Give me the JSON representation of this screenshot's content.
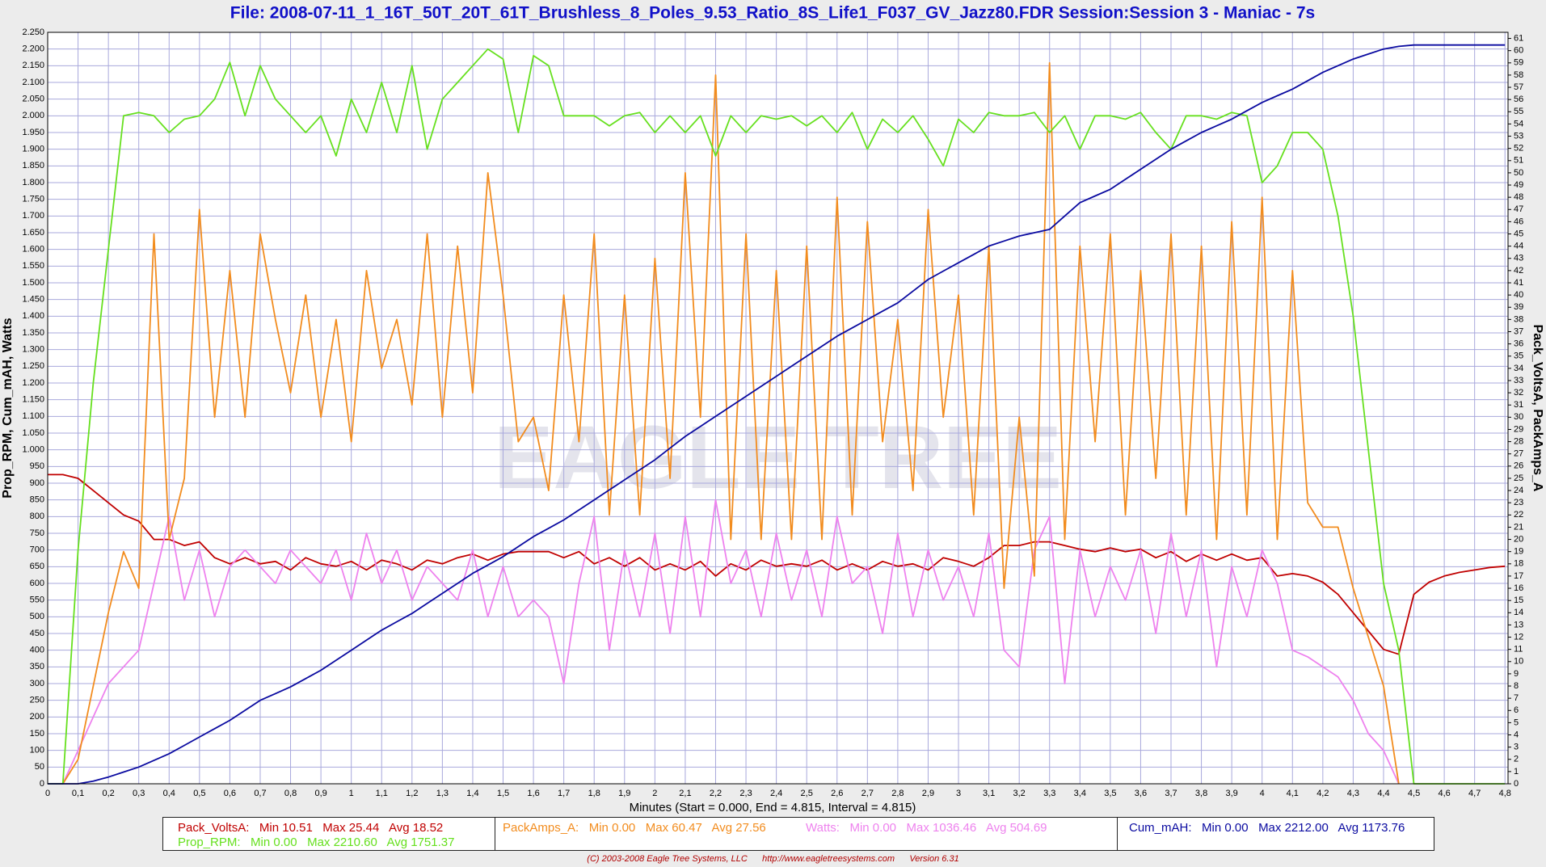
{
  "chart_data": {
    "type": "line",
    "title": "File: 2008-07-11_1_16T_50T_20T_61T_Brushless_8_Poles_9.53_Ratio_8S_Life1_F037_GV_Jazz80.FDR    Session:Session 3 - Maniac - 7s",
    "xlabel": "Minutes (Start = 0.000,  End = 4.815,  Interval =  4.815)",
    "ylabel": "Prop_RPM, Cum_mAH, Watts",
    "y2label": "Pack_VoltsA, PackAmps_A",
    "watermark": "EAGLE TREE",
    "footer": [
      "(C) 2003-2008 Eagle Tree Systems, LLC",
      "http://www.eagletreesystems.com",
      "Version 6.31"
    ],
    "grid": true,
    "xlim": [
      0,
      4.81
    ],
    "ylim": [
      0,
      2250
    ],
    "y2lim": [
      0,
      61.5
    ],
    "x": [
      0,
      0.05,
      0.1,
      0.15,
      0.2,
      0.25,
      0.3,
      0.35,
      0.4,
      0.45,
      0.5,
      0.55,
      0.6,
      0.65,
      0.7,
      0.75,
      0.8,
      0.85,
      0.9,
      0.95,
      1,
      1.05,
      1.1,
      1.15,
      1.2,
      1.25,
      1.3,
      1.35,
      1.4,
      1.45,
      1.5,
      1.55,
      1.6,
      1.65,
      1.7,
      1.75,
      1.8,
      1.85,
      1.9,
      1.95,
      2,
      2.05,
      2.1,
      2.15,
      2.2,
      2.25,
      2.3,
      2.35,
      2.4,
      2.45,
      2.5,
      2.55,
      2.6,
      2.65,
      2.7,
      2.75,
      2.8,
      2.85,
      2.9,
      2.95,
      3,
      3.05,
      3.1,
      3.15,
      3.2,
      3.25,
      3.3,
      3.35,
      3.4,
      3.45,
      3.5,
      3.55,
      3.6,
      3.65,
      3.7,
      3.75,
      3.8,
      3.85,
      3.9,
      3.95,
      4,
      4.05,
      4.1,
      4.15,
      4.2,
      4.25,
      4.3,
      4.35,
      4.4,
      4.45,
      4.5,
      4.55,
      4.6,
      4.65,
      4.7,
      4.75,
      4.8
    ],
    "series": [
      {
        "name": "Pack_VoltsA:",
        "stats": "Min 10.51   Max 25.44   Avg 18.52",
        "color": "#c00000",
        "axis": "y2",
        "values": [
          25.3,
          25.3,
          25,
          24,
          23,
          22,
          21.5,
          20,
          20,
          19.5,
          19.8,
          18.5,
          18,
          18.5,
          18,
          18.2,
          17.5,
          18.5,
          18,
          17.8,
          18.2,
          17.5,
          18.3,
          18,
          17.5,
          18.3,
          18,
          18.5,
          18.8,
          18.3,
          18.8,
          19,
          19,
          19,
          18.5,
          19,
          18,
          18.5,
          17.8,
          18.5,
          17.5,
          18,
          17.5,
          18.2,
          17,
          18,
          17.5,
          18.3,
          17.8,
          18,
          17.8,
          18.3,
          17.5,
          18,
          17.5,
          18.2,
          17.8,
          18,
          17.5,
          18.5,
          18.2,
          17.8,
          18.5,
          19.5,
          19.5,
          19.8,
          19.8,
          19.5,
          19.2,
          19,
          19.3,
          19,
          19.2,
          18.5,
          19,
          18.2,
          18.8,
          18.3,
          18.8,
          18.3,
          18.5,
          17,
          17.2,
          17,
          16.5,
          15.5,
          14,
          12.5,
          11,
          10.6,
          15.5,
          16.5,
          17,
          17.3,
          17.5,
          17.7,
          17.8
        ]
      },
      {
        "name": "Prop_RPM:",
        "stats": "Min 0.00   Max 2210.60   Avg 1751.37",
        "color": "#66e01e",
        "values": [
          0,
          0,
          700,
          1200,
          1600,
          2000,
          2010,
          2000,
          1950,
          1990,
          2000,
          2050,
          2160,
          2000,
          2150,
          2050,
          2000,
          1950,
          2000,
          1880,
          2050,
          1950,
          2100,
          1950,
          2150,
          1900,
          2050,
          2100,
          2150,
          2200,
          2170,
          1950,
          2180,
          2150,
          2000,
          2000,
          2000,
          1970,
          2000,
          2010,
          1950,
          2000,
          1950,
          2000,
          1880,
          2000,
          1950,
          2000,
          1990,
          2000,
          1970,
          2000,
          1950,
          2010,
          1900,
          1990,
          1950,
          2000,
          1930,
          1850,
          1990,
          1950,
          2010,
          2000,
          2000,
          2010,
          1950,
          2000,
          1900,
          2000,
          2000,
          1990,
          2010,
          1950,
          1900,
          2000,
          2000,
          1990,
          2010,
          2000,
          1800,
          1850,
          1950,
          1950,
          1900,
          1700,
          1400,
          1000,
          600,
          400,
          0,
          0,
          0,
          0,
          0,
          0,
          0
        ]
      },
      {
        "name": "PackAmps_A:",
        "stats": "Min 0.00   Max 60.47   Avg 27.56",
        "color": "#f28c1e",
        "axis": "y2",
        "values": [
          0,
          0,
          2,
          8,
          14,
          19,
          16,
          45,
          20,
          25,
          47,
          30,
          42,
          30,
          45,
          38,
          32,
          40,
          30,
          38,
          28,
          42,
          34,
          38,
          31,
          45,
          30,
          44,
          32,
          50,
          40,
          28,
          30,
          24,
          40,
          28,
          45,
          22,
          40,
          22,
          43,
          25,
          50,
          30,
          58,
          20,
          45,
          20,
          42,
          20,
          44,
          20,
          48,
          22,
          46,
          28,
          38,
          24,
          47,
          30,
          40,
          22,
          44,
          16,
          30,
          17,
          59,
          20,
          44,
          28,
          45,
          22,
          42,
          25,
          45,
          22,
          44,
          20,
          46,
          22,
          48,
          20,
          42,
          23,
          21,
          21,
          16,
          12,
          8,
          0,
          null,
          null,
          null,
          null,
          null,
          null,
          null
        ]
      },
      {
        "name": "Watts:",
        "stats": "Min 0.00   Max 1036.46   Avg 504.69",
        "color": "#ee82ee",
        "values": [
          0,
          0,
          100,
          200,
          300,
          350,
          400,
          600,
          800,
          550,
          700,
          500,
          650,
          700,
          650,
          600,
          700,
          650,
          600,
          700,
          550,
          750,
          600,
          700,
          550,
          650,
          600,
          550,
          700,
          500,
          650,
          500,
          550,
          500,
          300,
          600,
          800,
          400,
          700,
          500,
          750,
          450,
          800,
          500,
          850,
          600,
          700,
          500,
          750,
          550,
          700,
          500,
          800,
          600,
          650,
          450,
          750,
          500,
          700,
          550,
          650,
          500,
          750,
          400,
          350,
          700,
          800,
          300,
          700,
          500,
          650,
          550,
          700,
          450,
          750,
          500,
          700,
          350,
          650,
          500,
          700,
          600,
          400,
          380,
          350,
          320,
          250,
          150,
          100,
          0,
          null,
          null,
          null,
          null,
          null,
          null,
          null
        ]
      },
      {
        "name": "Cum_mAH:",
        "stats": "Min 0.00   Max 2212.00   Avg 1173.76",
        "color": "#0a0aa0",
        "values": [
          0,
          0,
          0,
          8,
          20,
          35,
          50,
          70,
          90,
          115,
          140,
          165,
          190,
          220,
          250,
          270,
          290,
          315,
          340,
          370,
          400,
          430,
          460,
          485,
          510,
          540,
          570,
          600,
          630,
          655,
          680,
          710,
          740,
          765,
          790,
          820,
          850,
          880,
          910,
          940,
          970,
          1005,
          1040,
          1070,
          1100,
          1130,
          1160,
          1190,
          1220,
          1250,
          1280,
          1310,
          1340,
          1365,
          1390,
          1415,
          1440,
          1475,
          1510,
          1535,
          1560,
          1585,
          1610,
          1625,
          1640,
          1650,
          1660,
          1700,
          1740,
          1760,
          1780,
          1810,
          1840,
          1870,
          1900,
          1925,
          1950,
          1970,
          1990,
          2015,
          2040,
          2060,
          2080,
          2105,
          2130,
          2150,
          2170,
          2185,
          2200,
          2208,
          2212,
          2212,
          2212,
          2212,
          2212,
          2212,
          2212
        ]
      }
    ],
    "xticks": [
      0,
      {
        "value": 0.1,
        "label": "0,1"
      },
      {
        "value": 0.2,
        "label": "0,2"
      },
      {
        "value": 0.3,
        "label": "0,3"
      },
      {
        "value": 0.4,
        "label": "0,4"
      },
      {
        "value": 0.5,
        "label": "0,5"
      },
      {
        "value": 0.6,
        "label": "0,6"
      },
      {
        "value": 0.7,
        "label": "0,7"
      },
      {
        "value": 0.8,
        "label": "0,8"
      },
      {
        "value": 0.9,
        "label": "0,9"
      },
      1,
      {
        "value": 1.1,
        "label": "1,1"
      },
      {
        "value": 1.2,
        "label": "1,2"
      },
      {
        "value": 1.3,
        "label": "1,3"
      },
      {
        "value": 1.4,
        "label": "1,4"
      },
      {
        "value": 1.5,
        "label": "1,5"
      },
      {
        "value": 1.6,
        "label": "1,6"
      },
      {
        "value": 1.7,
        "label": "1,7"
      },
      {
        "value": 1.8,
        "label": "1,8"
      },
      {
        "value": 1.9,
        "label": "1,9"
      },
      2,
      {
        "value": 2.1,
        "label": "2,1"
      },
      {
        "value": 2.2,
        "label": "2,2"
      },
      {
        "value": 2.3,
        "label": "2,3"
      },
      {
        "value": 2.4,
        "label": "2,4"
      },
      {
        "value": 2.5,
        "label": "2,5"
      },
      {
        "value": 2.6,
        "label": "2,6"
      },
      {
        "value": 2.7,
        "label": "2,7"
      },
      {
        "value": 2.8,
        "label": "2,8"
      },
      {
        "value": 2.9,
        "label": "2,9"
      },
      3,
      {
        "value": 3.1,
        "label": "3,1"
      },
      {
        "value": 3.2,
        "label": "3,2"
      },
      {
        "value": 3.3,
        "label": "3,3"
      },
      {
        "value": 3.4,
        "label": "3,4"
      },
      {
        "value": 3.5,
        "label": "3,5"
      },
      {
        "value": 3.6,
        "label": "3,6"
      },
      {
        "value": 3.7,
        "label": "3,7"
      },
      {
        "value": 3.8,
        "label": "3,8"
      },
      {
        "value": 3.9,
        "label": "3,9"
      },
      4,
      {
        "value": 4.1,
        "label": "4,1"
      },
      {
        "value": 4.2,
        "label": "4,2"
      },
      {
        "value": 4.3,
        "label": "4,3"
      },
      {
        "value": 4.4,
        "label": "4,4"
      },
      {
        "value": 4.5,
        "label": "4,5"
      },
      {
        "value": 4.6,
        "label": "4,6"
      },
      {
        "value": 4.7,
        "label": "4,7"
      },
      {
        "value": 4.8,
        "label": "4,8"
      }
    ],
    "yticks": [
      0,
      50,
      100,
      150,
      200,
      250,
      300,
      350,
      400,
      450,
      500,
      550,
      600,
      650,
      700,
      750,
      800,
      850,
      900,
      950,
      {
        "value": 1000,
        "label": "1.000"
      },
      {
        "value": 1050,
        "label": "1.050"
      },
      {
        "value": 1100,
        "label": "1.100"
      },
      {
        "value": 1150,
        "label": "1.150"
      },
      {
        "value": 1200,
        "label": "1.200"
      },
      {
        "value": 1250,
        "label": "1.250"
      },
      {
        "value": 1300,
        "label": "1.300"
      },
      {
        "value": 1350,
        "label": "1.350"
      },
      {
        "value": 1400,
        "label": "1.400"
      },
      {
        "value": 1450,
        "label": "1.450"
      },
      {
        "value": 1500,
        "label": "1.500"
      },
      {
        "value": 1550,
        "label": "1.550"
      },
      {
        "value": 1600,
        "label": "1.600"
      },
      {
        "value": 1650,
        "label": "1.650"
      },
      {
        "value": 1700,
        "label": "1.700"
      },
      {
        "value": 1750,
        "label": "1.750"
      },
      {
        "value": 1800,
        "label": "1.800"
      },
      {
        "value": 1850,
        "label": "1.850"
      },
      {
        "value": 1900,
        "label": "1.900"
      },
      {
        "value": 1950,
        "label": "1.950"
      },
      {
        "value": 2000,
        "label": "2.000"
      },
      {
        "value": 2050,
        "label": "2.050"
      },
      {
        "value": 2100,
        "label": "2.100"
      },
      {
        "value": 2150,
        "label": "2.150"
      },
      {
        "value": 2200,
        "label": "2.200"
      },
      {
        "value": 2250,
        "label": "2.250"
      }
    ],
    "y2ticks": [
      0,
      1,
      2,
      3,
      4,
      5,
      6,
      7,
      8,
      9,
      10,
      11,
      12,
      13,
      14,
      15,
      16,
      17,
      18,
      19,
      20,
      21,
      22,
      23,
      24,
      25,
      26,
      27,
      28,
      29,
      30,
      31,
      32,
      33,
      34,
      35,
      36,
      37,
      38,
      39,
      40,
      41,
      42,
      43,
      44,
      45,
      46,
      47,
      48,
      49,
      50,
      51,
      52,
      53,
      54,
      55,
      56,
      57,
      58,
      59,
      60,
      61
    ]
  }
}
